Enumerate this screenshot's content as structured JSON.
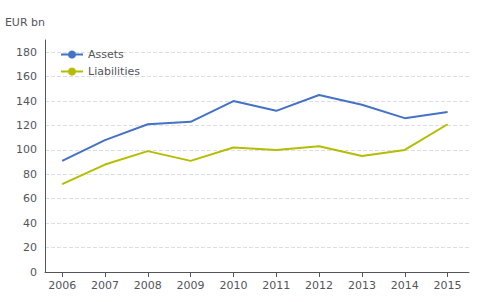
{
  "chart_data": {
    "type": "line",
    "ylabel": "EUR bn",
    "x": [
      2006,
      2007,
      2008,
      2009,
      2010,
      2011,
      2012,
      2013,
      2014,
      2015
    ],
    "series": [
      {
        "name": "Assets",
        "color": "#4472c4",
        "values": [
          91,
          108,
          121,
          123,
          140,
          132,
          145,
          137,
          126,
          131
        ]
      },
      {
        "name": "Liabilities",
        "color": "#b5bd00",
        "values": [
          72,
          88,
          99,
          91,
          102,
          100,
          103,
          95,
          100,
          121
        ]
      }
    ],
    "xlim": [
      2005.6,
      2015.5
    ],
    "xticks": [
      2006,
      2007,
      2008,
      2009,
      2010,
      2011,
      2012,
      2013,
      2014,
      2015
    ],
    "ylim": [
      0,
      190
    ],
    "yticks": [
      0,
      20,
      40,
      60,
      80,
      100,
      120,
      140,
      160,
      180
    ],
    "grid": true,
    "legend": "upper left"
  }
}
